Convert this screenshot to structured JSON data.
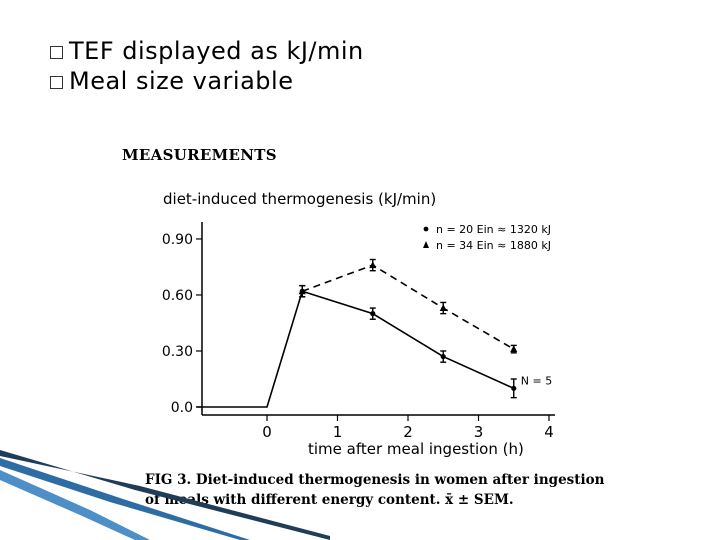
{
  "bullets": [
    {
      "label": "TEF displayed as kJ/min"
    },
    {
      "label": "Meal size variable"
    }
  ],
  "figure": {
    "heading": "MEASUREMENTS",
    "caption": "FIG 3. Diet-induced thermogenesis in women after ingestion of meals with different energy content. x̄ ± SEM."
  },
  "chart_data": {
    "type": "line",
    "title": "diet-induced thermogenesis (kJ/min)",
    "xlabel": "time after meal ingestion (h)",
    "ylabel": "",
    "xlim": [
      -1,
      4
    ],
    "ylim": [
      0,
      1.0
    ],
    "x_ticks": [
      {
        "value": 0,
        "label": "0"
      },
      {
        "value": 1,
        "label": "1"
      },
      {
        "value": 2,
        "label": "2"
      },
      {
        "value": 3,
        "label": "3"
      },
      {
        "value": 4,
        "label": "4"
      }
    ],
    "y_ticks": [
      {
        "value": 0.0,
        "label": "0.0"
      },
      {
        "value": 0.3,
        "label": "0.30"
      },
      {
        "value": 0.6,
        "label": "0.60"
      },
      {
        "value": 0.9,
        "label": "0.90"
      }
    ],
    "series": [
      {
        "name": "n = 20  Ein ≈ 1320 kJ",
        "marker": "circle",
        "dash": false,
        "x": [
          -1,
          0,
          0.5,
          1.5,
          2.5,
          3.5
        ],
        "y": [
          0.0,
          0.0,
          0.62,
          0.5,
          0.27,
          0.1
        ],
        "err": [
          0,
          0,
          0.03,
          0.03,
          0.03,
          0.05
        ]
      },
      {
        "name": "n = 34  Ein ≈ 1880 kJ",
        "marker": "triangle",
        "dash": true,
        "x": [
          0.5,
          1.5,
          2.5,
          3.5
        ],
        "y": [
          0.62,
          0.76,
          0.53,
          0.31
        ],
        "err": [
          0.03,
          0.03,
          0.03,
          0.02
        ]
      }
    ],
    "annotations": [
      {
        "text": "N = 5",
        "x": 3.6,
        "y": 0.1
      }
    ],
    "legend_position": "top-right"
  }
}
